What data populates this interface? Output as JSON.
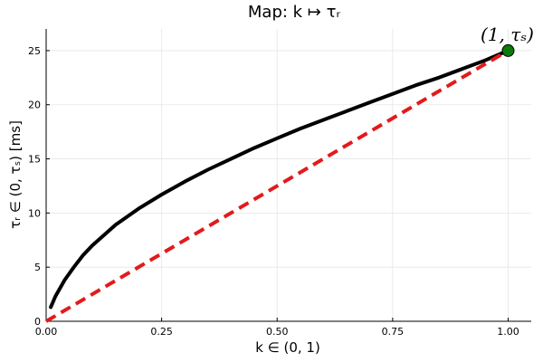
{
  "chart_data": {
    "type": "line",
    "title": "Map: k ↦ τᵣ",
    "xlabel": "k ∈ (0, 1)",
    "ylabel": "τᵣ ∈ (0, τₛ)   [ms]",
    "xlim": [
      0,
      1.05
    ],
    "ylim": [
      0,
      27
    ],
    "xticks": [
      0,
      0.25,
      0.5,
      0.75,
      1.0
    ],
    "xtick_labels": [
      "0.00",
      "0.25",
      "0.50",
      "0.75",
      "1.00"
    ],
    "yticks": [
      0,
      5,
      10,
      15,
      20,
      25
    ],
    "ytick_labels": [
      "0",
      "5",
      "10",
      "15",
      "20",
      "25"
    ],
    "grid": true,
    "legend": "none",
    "series": [
      {
        "style": "solid",
        "color": "#000000",
        "x": [
          0.01,
          0.02,
          0.04,
          0.06,
          0.08,
          0.1,
          0.15,
          0.2,
          0.25,
          0.3,
          0.35,
          0.4,
          0.45,
          0.5,
          0.55,
          0.6,
          0.65,
          0.7,
          0.75,
          0.8,
          0.85,
          0.9,
          0.95,
          1.0
        ],
        "y": [
          1.3,
          2.3,
          3.8,
          5.0,
          6.1,
          7.0,
          8.9,
          10.4,
          11.7,
          12.9,
          14.0,
          15.0,
          16.0,
          16.9,
          17.8,
          18.6,
          19.4,
          20.2,
          21.0,
          21.8,
          22.5,
          23.3,
          24.1,
          25.0
        ]
      },
      {
        "style": "dashed",
        "color": "#e31a1c",
        "x": [
          0,
          1.0
        ],
        "y": [
          0,
          25
        ]
      }
    ],
    "points": [
      {
        "x": 1.0,
        "y": 25,
        "color": "#0a7a0a",
        "label": "(1, τₛ)"
      }
    ]
  }
}
